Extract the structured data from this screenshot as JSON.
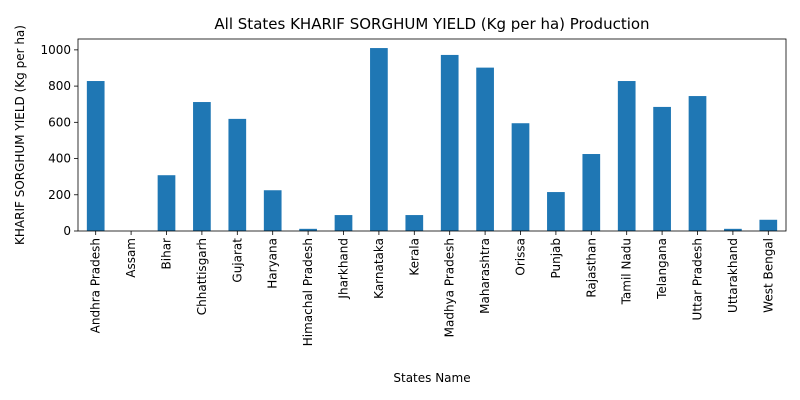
{
  "chart_data": {
    "type": "bar",
    "title": "All States KHARIF SORGHUM YIELD (Kg per ha) Production",
    "xlabel": "States Name",
    "ylabel": "KHARIF SORGHUM YIELD (Kg per ha)",
    "categories": [
      "Andhra Pradesh",
      "Assam",
      "Bihar",
      "Chhattisgarh",
      "Gujarat",
      "Haryana",
      "Himachal Pradesh",
      "Jharkhand",
      "Karnataka",
      "Kerala",
      "Madhya Pradesh",
      "Maharashtra",
      "Orissa",
      "Punjab",
      "Rajasthan",
      "Tamil Nadu",
      "Telangana",
      "Uttar Pradesh",
      "Uttarakhand",
      "West Bengal"
    ],
    "values": [
      828,
      0,
      308,
      712,
      619,
      225,
      12,
      88,
      1010,
      88,
      972,
      902,
      595,
      215,
      425,
      828,
      685,
      745,
      12,
      62
    ],
    "ylim": [
      0,
      1060
    ],
    "yticks": [
      0,
      200,
      400,
      600,
      800,
      1000
    ],
    "bar_color": "#1f77b4",
    "grid": false,
    "legend": "none"
  }
}
